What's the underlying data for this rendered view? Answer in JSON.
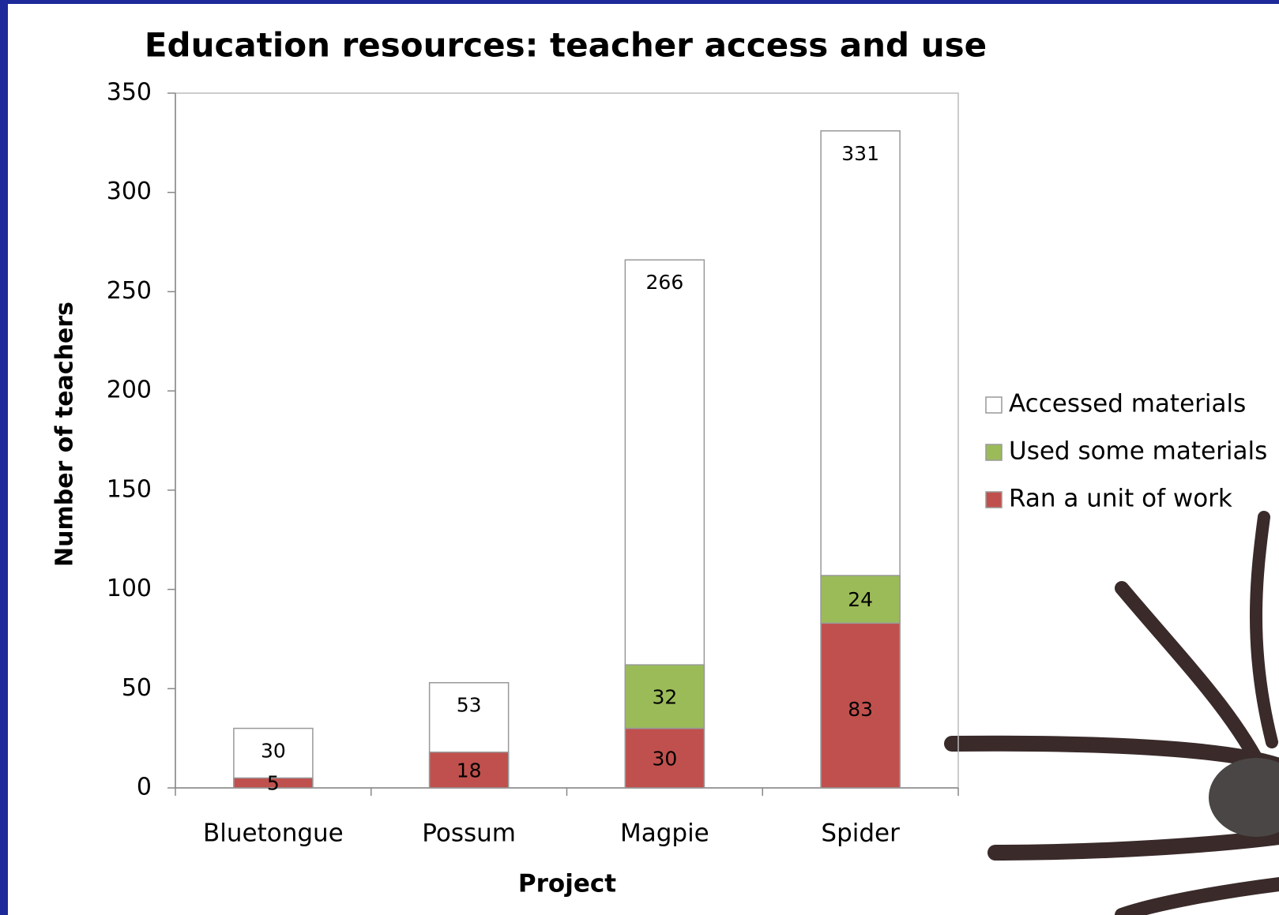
{
  "chart_data": {
    "type": "bar",
    "title": "Education resources: teacher access and use",
    "x_label": "Project",
    "y_label": "Number of teachers",
    "categories": [
      "Bluetongue",
      "Possum",
      "Magpie",
      "Spider"
    ],
    "series": [
      {
        "name": "Accessed materials",
        "color": "#ffffff",
        "values": [
          30,
          53,
          266,
          331
        ]
      },
      {
        "name": "Used some materials",
        "color": "#9bbb59",
        "values": [
          null,
          null,
          32,
          24
        ]
      },
      {
        "name": "Ran a unit of work",
        "color": "#c0504d",
        "values": [
          5,
          18,
          30,
          83
        ]
      }
    ],
    "ylim": [
      0,
      350
    ],
    "yticks": [
      0,
      50,
      100,
      150,
      200,
      250,
      300,
      350
    ],
    "grid": false,
    "legend": "right"
  }
}
